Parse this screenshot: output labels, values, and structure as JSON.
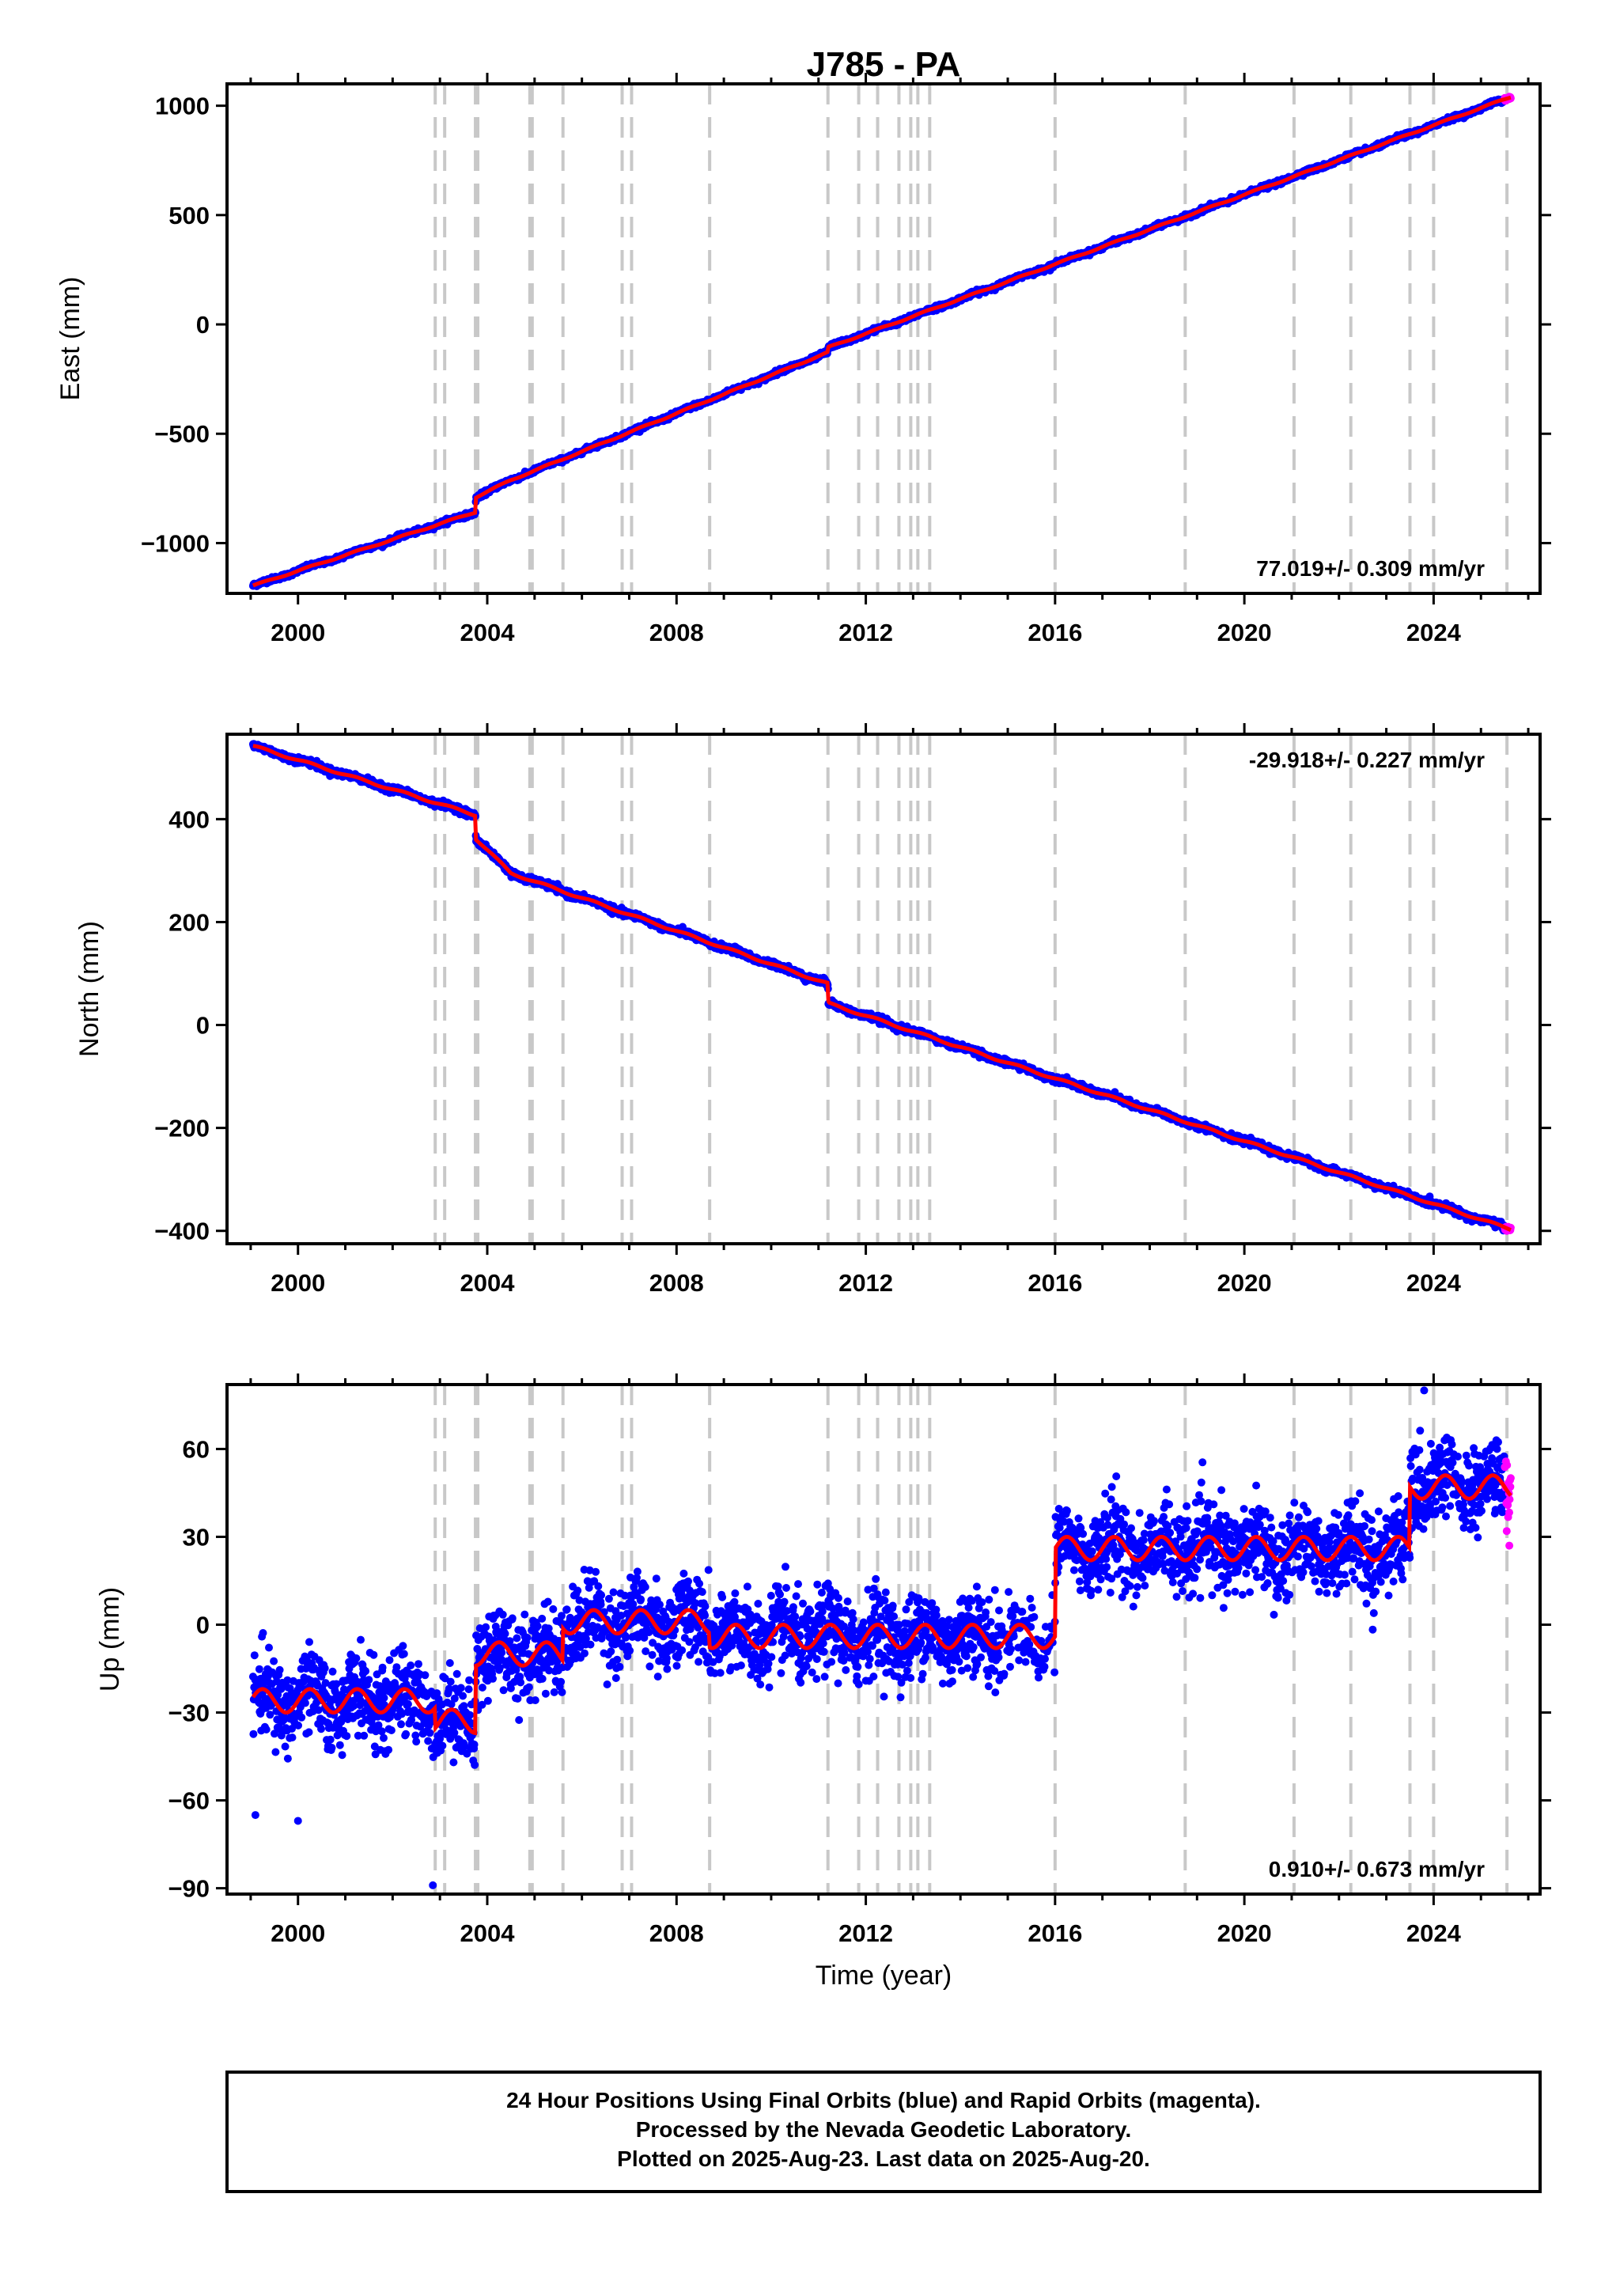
{
  "title": "J785 - PA",
  "xlabel": "Time (year)",
  "x_ticks": [
    "2000",
    "2004",
    "2008",
    "2012",
    "2016",
    "2020",
    "2024"
  ],
  "footer": {
    "line1": "24 Hour Positions Using Final Orbits (blue) and Rapid Orbits (magenta).",
    "line2": "Processed by the Nevada Geodetic Laboratory.",
    "line3": "Plotted on 2025-Aug-23. Last data on 2025-Aug-20."
  },
  "colors": {
    "final_orbits": "#0000ff",
    "rapid_orbits": "#ff00ff",
    "model": "#ff0000",
    "event_lines": "#c8c8c8",
    "frame": "#000000"
  },
  "chart_data": [
    {
      "type": "scatter",
      "component": "east",
      "ylabel": "East (mm)",
      "xlim": [
        1998.5,
        2026.25
      ],
      "ylim": [
        -1230,
        1100
      ],
      "y_ticks": [
        -1000,
        -500,
        0,
        500,
        1000
      ],
      "y_tick_labels": [
        "−1000",
        "−500",
        "0",
        "500",
        "1000"
      ],
      "rate_text": "77.019+/- 0.309 mm/yr",
      "rate_position": "bottom-right",
      "event_lines": [
        2002.9,
        2003.1,
        2003.75,
        2003.8,
        2004.9,
        2004.95,
        2005.6,
        2006.85,
        2007.05,
        2008.7,
        2011.2,
        2011.85,
        2012.25,
        2012.7,
        2012.95,
        2013.1,
        2013.35,
        2016.0,
        2018.75,
        2021.05,
        2022.25,
        2023.5,
        2024.0,
        2025.55
      ],
      "data_start": 1999.05,
      "data_end": 2025.63,
      "rapid_start": 2025.5,
      "model_breakpoints": [
        [
          1999.05,
          -1195
        ],
        [
          2003.75,
          -858
        ],
        [
          2003.76,
          -790
        ],
        [
          2004.5,
          -712
        ],
        [
          2011.2,
          -128
        ],
        [
          2011.21,
          -105
        ],
        [
          2025.63,
          1040
        ]
      ],
      "model_seasonal_amp": 3,
      "scatter_spread": 5
    },
    {
      "type": "scatter",
      "component": "north",
      "ylabel": "North (mm)",
      "xlim": [
        1998.5,
        2026.25
      ],
      "ylim": [
        -425,
        565
      ],
      "y_ticks": [
        -400,
        -200,
        0,
        200,
        400
      ],
      "y_tick_labels": [
        "−400",
        "−200",
        "0",
        "200",
        "400"
      ],
      "rate_text": "-29.918+/- 0.227 mm/yr",
      "rate_position": "top-right",
      "event_lines": [
        2002.9,
        2003.1,
        2003.75,
        2003.8,
        2004.9,
        2004.95,
        2005.6,
        2006.85,
        2007.05,
        2008.7,
        2011.2,
        2011.85,
        2012.25,
        2012.7,
        2012.95,
        2013.1,
        2013.35,
        2016.0,
        2018.75,
        2021.05,
        2022.25,
        2023.5,
        2024.0,
        2025.55
      ],
      "data_start": 1999.05,
      "data_end": 2025.63,
      "rapid_start": 2025.5,
      "model_breakpoints": [
        [
          1999.05,
          542
        ],
        [
          2003.75,
          408
        ],
        [
          2003.76,
          362
        ],
        [
          2004.5,
          295
        ],
        [
          2011.2,
          80
        ],
        [
          2011.21,
          42
        ],
        [
          2025.63,
          -397
        ]
      ],
      "model_seasonal_amp": 2,
      "scatter_spread": 3
    },
    {
      "type": "scatter",
      "component": "up",
      "ylabel": "Up (mm)",
      "xlim": [
        1998.5,
        2026.25
      ],
      "ylim": [
        -92,
        82
      ],
      "y_ticks": [
        -90,
        -60,
        -30,
        0,
        30,
        60
      ],
      "y_tick_labels": [
        "−90",
        "−60",
        "−30",
        "0",
        "30",
        "60"
      ],
      "rate_text": "0.910+/- 0.673 mm/yr",
      "rate_position": "bottom-right",
      "event_lines": [
        2002.9,
        2003.1,
        2003.75,
        2003.8,
        2004.9,
        2004.95,
        2005.6,
        2006.85,
        2007.05,
        2008.7,
        2011.2,
        2011.85,
        2012.25,
        2012.7,
        2012.95,
        2013.1,
        2013.35,
        2016.0,
        2018.75,
        2021.05,
        2022.25,
        2023.5,
        2024.0,
        2025.55
      ],
      "data_start": 1999.05,
      "data_end": 2025.63,
      "rapid_start": 2025.5,
      "model_segments": [
        [
          1999.05,
          2002.9,
          -26
        ],
        [
          2002.9,
          2003.75,
          -33
        ],
        [
          2003.75,
          2005.6,
          -10
        ],
        [
          2005.6,
          2008.7,
          1
        ],
        [
          2008.7,
          2016.0,
          -4
        ],
        [
          2016.0,
          2023.5,
          26
        ],
        [
          2023.5,
          2025.63,
          47
        ]
      ],
      "model_seasonal_amp": 4,
      "scatter_spread": 7,
      "outliers": [
        [
          1999.1,
          -65
        ],
        [
          2000.0,
          -67
        ],
        [
          2002.85,
          -89
        ],
        [
          2023.8,
          80
        ],
        [
          2025.6,
          27
        ]
      ]
    }
  ]
}
